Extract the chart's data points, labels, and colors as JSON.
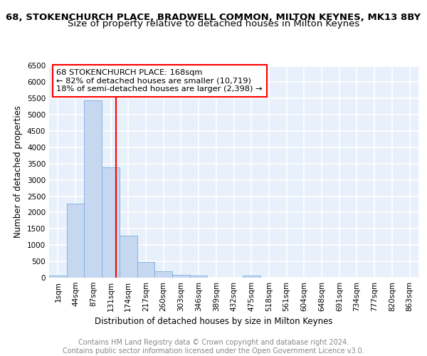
{
  "title": "68, STOKENCHURCH PLACE, BRADWELL COMMON, MILTON KEYNES, MK13 8BY",
  "subtitle": "Size of property relative to detached houses in Milton Keynes",
  "xlabel": "Distribution of detached houses by size in Milton Keynes",
  "ylabel": "Number of detached properties",
  "bin_labels": [
    "1sqm",
    "44sqm",
    "87sqm",
    "131sqm",
    "174sqm",
    "217sqm",
    "260sqm",
    "303sqm",
    "346sqm",
    "389sqm",
    "432sqm",
    "475sqm",
    "518sqm",
    "561sqm",
    "604sqm",
    "648sqm",
    "691sqm",
    "734sqm",
    "777sqm",
    "820sqm",
    "863sqm"
  ],
  "bar_values": [
    75,
    2280,
    5450,
    3380,
    1290,
    490,
    195,
    88,
    58,
    0,
    0,
    58,
    0,
    0,
    0,
    0,
    0,
    0,
    0,
    0,
    0
  ],
  "bar_color": "#c5d8f0",
  "bar_edgecolor": "#7aade0",
  "vline_x": 3.82,
  "annotation_text": "68 STOKENCHURCH PLACE: 168sqm\n← 82% of detached houses are smaller (10,719)\n18% of semi-detached houses are larger (2,398) →",
  "annotation_box_color": "white",
  "annotation_box_edgecolor": "red",
  "vline_color": "red",
  "ylim": [
    0,
    6500
  ],
  "yticks": [
    0,
    500,
    1000,
    1500,
    2000,
    2500,
    3000,
    3500,
    4000,
    4500,
    5000,
    5500,
    6000,
    6500
  ],
  "footer_line1": "Contains HM Land Registry data © Crown copyright and database right 2024.",
  "footer_line2": "Contains public sector information licensed under the Open Government Licence v3.0.",
  "bg_color": "#e8f0fb",
  "grid_color": "white",
  "title_fontsize": 9.5,
  "subtitle_fontsize": 9.5,
  "axis_label_fontsize": 8.5,
  "tick_fontsize": 7.5,
  "annotation_fontsize": 8.2,
  "footer_fontsize": 7.0
}
